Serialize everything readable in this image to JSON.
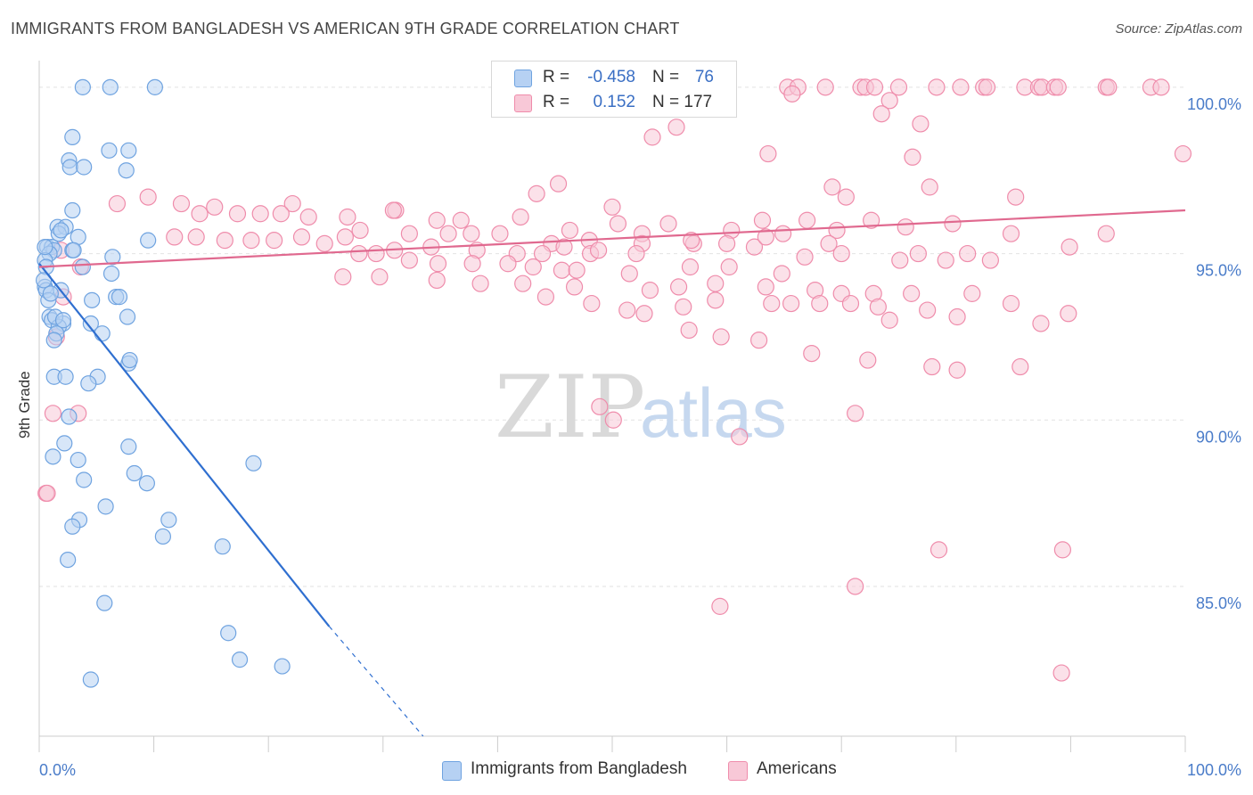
{
  "header": {
    "title": "IMMIGRANTS FROM BANGLADESH VS AMERICAN 9TH GRADE CORRELATION CHART",
    "source": "Source: ZipAtlas.com"
  },
  "watermark": {
    "zip": "ZIP",
    "atlas": "atlas"
  },
  "legend": {
    "rows": [
      {
        "r_label": "R =",
        "r_value": "-0.458",
        "n_label": "N =",
        "n_value": "76",
        "color": "#a9c9f2"
      },
      {
        "r_label": "R =",
        "r_value": "0.152",
        "n_label": "N = 177",
        "n_value": "",
        "color": "#f6b9cc"
      }
    ]
  },
  "bottom_legend": {
    "items": [
      {
        "label": "Immigrants from Bangladesh",
        "color": "#a9c9f2"
      },
      {
        "label": "Americans",
        "color": "#f6b9cc"
      }
    ]
  },
  "chart_data": {
    "type": "scatter",
    "title": "IMMIGRANTS FROM BANGLADESH VS AMERICAN 9TH GRADE CORRELATION CHART",
    "xlabel": "",
    "ylabel": "9th Grade",
    "xlim": [
      0,
      100
    ],
    "ylim": [
      80.5,
      100.8
    ],
    "y_ticks": [
      85,
      90,
      95,
      100
    ],
    "y_tick_labels": [
      "85.0%",
      "90.0%",
      "95.0%",
      "100.0%"
    ],
    "x_tick_labels": [
      "0.0%",
      "100.0%"
    ],
    "grid": true,
    "colors": {
      "blue": "#6fa3e0",
      "blue_fill": "#b6d1f3",
      "pink": "#ef8cab",
      "pink_fill": "#f8c8d7",
      "blue_line": "#2f6fd0",
      "pink_line": "#e0698f"
    },
    "series": [
      {
        "name": "Immigrants from Bangladesh",
        "trend": {
          "x0": 0,
          "y0": 94.7,
          "x1": 25.3,
          "y1": 83.8,
          "dash_to_x": 33.5,
          "dash_to_y": 80.5
        },
        "points": [
          [
            3.8,
            100
          ],
          [
            6.2,
            100
          ],
          [
            10.1,
            100
          ],
          [
            2.9,
            98.5
          ],
          [
            6.1,
            98.1
          ],
          [
            7.8,
            98.1
          ],
          [
            2.6,
            97.8
          ],
          [
            2.7,
            97.6
          ],
          [
            3.9,
            97.6
          ],
          [
            7.6,
            97.5
          ],
          [
            2.9,
            96.3
          ],
          [
            1.6,
            95.8
          ],
          [
            2.3,
            95.8
          ],
          [
            1.7,
            95.6
          ],
          [
            3.4,
            95.5
          ],
          [
            9.5,
            95.4
          ],
          [
            0.7,
            95.2
          ],
          [
            1.1,
            95.2
          ],
          [
            1.3,
            95.1
          ],
          [
            0.9,
            95.0
          ],
          [
            2.9,
            95.1
          ],
          [
            6.4,
            94.9
          ],
          [
            0.5,
            94.8
          ],
          [
            0.6,
            94.6
          ],
          [
            3.8,
            94.6
          ],
          [
            6.3,
            94.4
          ],
          [
            0.5,
            94.0
          ],
          [
            0.6,
            93.9
          ],
          [
            1.9,
            93.9
          ],
          [
            0.8,
            93.6
          ],
          [
            6.7,
            93.7
          ],
          [
            7.0,
            93.7
          ],
          [
            4.6,
            93.6
          ],
          [
            7.7,
            93.1
          ],
          [
            0.9,
            93.1
          ],
          [
            1.1,
            93.0
          ],
          [
            2.1,
            92.9
          ],
          [
            1.7,
            92.8
          ],
          [
            4.5,
            92.9
          ],
          [
            1.5,
            92.6
          ],
          [
            5.5,
            92.6
          ],
          [
            1.3,
            92.4
          ],
          [
            7.8,
            91.7
          ],
          [
            7.9,
            91.8
          ],
          [
            1.3,
            91.3
          ],
          [
            2.3,
            91.3
          ],
          [
            5.1,
            91.3
          ],
          [
            4.3,
            91.1
          ],
          [
            2.6,
            90.1
          ],
          [
            2.2,
            89.3
          ],
          [
            7.8,
            89.2
          ],
          [
            1.2,
            88.9
          ],
          [
            3.4,
            88.8
          ],
          [
            18.7,
            88.7
          ],
          [
            8.3,
            88.4
          ],
          [
            3.9,
            88.2
          ],
          [
            9.4,
            88.1
          ],
          [
            5.8,
            87.4
          ],
          [
            3.5,
            87.0
          ],
          [
            11.3,
            87.0
          ],
          [
            2.9,
            86.8
          ],
          [
            10.8,
            86.5
          ],
          [
            16.0,
            86.2
          ],
          [
            2.5,
            85.8
          ],
          [
            5.7,
            84.5
          ],
          [
            16.5,
            83.6
          ],
          [
            17.5,
            82.8
          ],
          [
            21.2,
            82.6
          ],
          [
            4.5,
            82.2
          ],
          [
            0.4,
            94.2
          ],
          [
            1.4,
            93.1
          ],
          [
            2.1,
            93.0
          ],
          [
            1.0,
            93.8
          ],
          [
            0.5,
            95.2
          ],
          [
            1.9,
            95.7
          ],
          [
            3.0,
            95.1
          ]
        ]
      },
      {
        "name": "Americans",
        "trend": {
          "x0": 0,
          "y0": 94.6,
          "x1": 100,
          "y1": 96.3
        },
        "points": [
          [
            57.0,
            100
          ],
          [
            58.5,
            100
          ],
          [
            65.3,
            100
          ],
          [
            66.2,
            100
          ],
          [
            68.6,
            100
          ],
          [
            71.7,
            100
          ],
          [
            72.1,
            100
          ],
          [
            72.9,
            100
          ],
          [
            75.0,
            100
          ],
          [
            78.3,
            100
          ],
          [
            80.4,
            100
          ],
          [
            82.4,
            100
          ],
          [
            82.7,
            100
          ],
          [
            86.0,
            100
          ],
          [
            87.2,
            100
          ],
          [
            87.5,
            100
          ],
          [
            88.6,
            100
          ],
          [
            88.9,
            100
          ],
          [
            93.1,
            100
          ],
          [
            93.3,
            100
          ],
          [
            97.0,
            100
          ],
          [
            97.9,
            100
          ],
          [
            65.7,
            99.8
          ],
          [
            74.2,
            99.6
          ],
          [
            73.5,
            99.2
          ],
          [
            55.6,
            98.8
          ],
          [
            76.9,
            98.9
          ],
          [
            53.5,
            98.5
          ],
          [
            63.6,
            98.0
          ],
          [
            99.8,
            98.0
          ],
          [
            76.2,
            97.9
          ],
          [
            45.3,
            97.1
          ],
          [
            69.2,
            97.0
          ],
          [
            77.7,
            97.0
          ],
          [
            43.4,
            96.8
          ],
          [
            70.4,
            96.7
          ],
          [
            85.2,
            96.7
          ],
          [
            6.8,
            96.5
          ],
          [
            9.5,
            96.7
          ],
          [
            12.4,
            96.5
          ],
          [
            22.1,
            96.5
          ],
          [
            31.1,
            96.3
          ],
          [
            50.0,
            96.4
          ],
          [
            14.0,
            96.2
          ],
          [
            15.3,
            96.4
          ],
          [
            17.3,
            96.2
          ],
          [
            19.3,
            96.2
          ],
          [
            21.1,
            96.2
          ],
          [
            23.5,
            96.1
          ],
          [
            26.9,
            96.1
          ],
          [
            30.9,
            96.3
          ],
          [
            34.7,
            96.0
          ],
          [
            36.8,
            96.0
          ],
          [
            42.0,
            96.1
          ],
          [
            54.9,
            95.9
          ],
          [
            63.1,
            96.0
          ],
          [
            67.0,
            96.0
          ],
          [
            72.6,
            96.0
          ],
          [
            75.6,
            95.8
          ],
          [
            79.7,
            95.9
          ],
          [
            46.3,
            95.7
          ],
          [
            50.5,
            95.9
          ],
          [
            52.6,
            95.6
          ],
          [
            60.4,
            95.7
          ],
          [
            64.9,
            95.6
          ],
          [
            69.6,
            95.7
          ],
          [
            84.8,
            95.6
          ],
          [
            93.1,
            95.6
          ],
          [
            26.7,
            95.5
          ],
          [
            28.0,
            95.7
          ],
          [
            32.3,
            95.6
          ],
          [
            35.7,
            95.6
          ],
          [
            37.7,
            95.6
          ],
          [
            40.2,
            95.6
          ],
          [
            44.7,
            95.3
          ],
          [
            48.0,
            95.4
          ],
          [
            52.6,
            95.3
          ],
          [
            57.1,
            95.3
          ],
          [
            62.4,
            95.2
          ],
          [
            70.0,
            95.0
          ],
          [
            76.7,
            95.0
          ],
          [
            81.0,
            95.0
          ],
          [
            89.9,
            95.2
          ],
          [
            11.8,
            95.5
          ],
          [
            13.7,
            95.5
          ],
          [
            16.2,
            95.4
          ],
          [
            18.5,
            95.4
          ],
          [
            20.5,
            95.4
          ],
          [
            22.9,
            95.5
          ],
          [
            24.9,
            95.3
          ],
          [
            27.9,
            95.0
          ],
          [
            29.4,
            95.0
          ],
          [
            31.0,
            95.1
          ],
          [
            34.2,
            95.2
          ],
          [
            38.2,
            95.1
          ],
          [
            41.7,
            95.0
          ],
          [
            43.9,
            95.0
          ],
          [
            45.8,
            95.2
          ],
          [
            48.1,
            95.0
          ],
          [
            48.8,
            95.1
          ],
          [
            52.1,
            95.0
          ],
          [
            56.9,
            95.4
          ],
          [
            60.0,
            95.3
          ],
          [
            63.4,
            95.5
          ],
          [
            66.8,
            94.9
          ],
          [
            68.9,
            95.3
          ],
          [
            32.3,
            94.8
          ],
          [
            34.8,
            94.7
          ],
          [
            37.8,
            94.7
          ],
          [
            40.9,
            94.7
          ],
          [
            43.1,
            94.6
          ],
          [
            45.6,
            94.5
          ],
          [
            46.9,
            94.5
          ],
          [
            51.5,
            94.4
          ],
          [
            56.8,
            94.6
          ],
          [
            60.2,
            94.6
          ],
          [
            64.8,
            94.4
          ],
          [
            75.1,
            94.8
          ],
          [
            79.1,
            94.8
          ],
          [
            83.0,
            94.8
          ],
          [
            26.5,
            94.3
          ],
          [
            29.7,
            94.3
          ],
          [
            34.7,
            94.2
          ],
          [
            38.5,
            94.1
          ],
          [
            42.2,
            94.1
          ],
          [
            46.7,
            94.0
          ],
          [
            53.3,
            93.9
          ],
          [
            55.8,
            94.0
          ],
          [
            59.0,
            94.1
          ],
          [
            63.4,
            94.0
          ],
          [
            67.7,
            93.9
          ],
          [
            70.0,
            93.8
          ],
          [
            72.8,
            93.8
          ],
          [
            76.1,
            93.8
          ],
          [
            81.4,
            93.8
          ],
          [
            44.2,
            93.7
          ],
          [
            48.2,
            93.5
          ],
          [
            51.3,
            93.3
          ],
          [
            56.2,
            93.4
          ],
          [
            59.0,
            93.6
          ],
          [
            63.9,
            93.5
          ],
          [
            65.6,
            93.5
          ],
          [
            68.1,
            93.5
          ],
          [
            70.8,
            93.5
          ],
          [
            73.2,
            93.4
          ],
          [
            74.2,
            93.0
          ],
          [
            77.5,
            93.3
          ],
          [
            80.1,
            93.1
          ],
          [
            84.8,
            93.5
          ],
          [
            87.4,
            92.9
          ],
          [
            89.8,
            93.2
          ],
          [
            52.8,
            93.2
          ],
          [
            56.7,
            92.7
          ],
          [
            59.5,
            92.5
          ],
          [
            62.8,
            92.4
          ],
          [
            67.4,
            92.0
          ],
          [
            72.3,
            91.8
          ],
          [
            77.9,
            91.6
          ],
          [
            80.1,
            91.5
          ],
          [
            85.6,
            91.6
          ],
          [
            1.2,
            90.2
          ],
          [
            3.4,
            90.2
          ],
          [
            48.9,
            90.4
          ],
          [
            50.1,
            90.0
          ],
          [
            61.1,
            89.5
          ],
          [
            71.2,
            90.2
          ],
          [
            0.6,
            87.8
          ],
          [
            78.5,
            86.1
          ],
          [
            89.3,
            86.1
          ],
          [
            71.2,
            85.0
          ],
          [
            59.4,
            84.4
          ],
          [
            89.2,
            82.4
          ],
          [
            0.7,
            87.8
          ],
          [
            3.6,
            94.6
          ],
          [
            1.9,
            95.1
          ],
          [
            2.1,
            93.7
          ],
          [
            1.5,
            92.5
          ]
        ]
      }
    ]
  }
}
